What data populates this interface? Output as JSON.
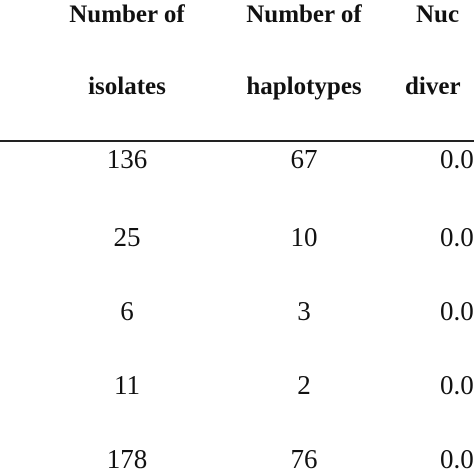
{
  "table": {
    "headers": [
      {
        "line1": "Number of",
        "line2": "isolates"
      },
      {
        "line1": "Number of",
        "line2": "haplotypes"
      },
      {
        "line1": "Nuc",
        "line2": "diver"
      }
    ],
    "rows": [
      [
        "136",
        "67",
        "0.0"
      ],
      [
        "25",
        "10",
        "0.0"
      ],
      [
        "6",
        "3",
        "0.0"
      ],
      [
        "11",
        "2",
        "0.0"
      ],
      [
        "178",
        "76",
        "0.0"
      ]
    ]
  }
}
